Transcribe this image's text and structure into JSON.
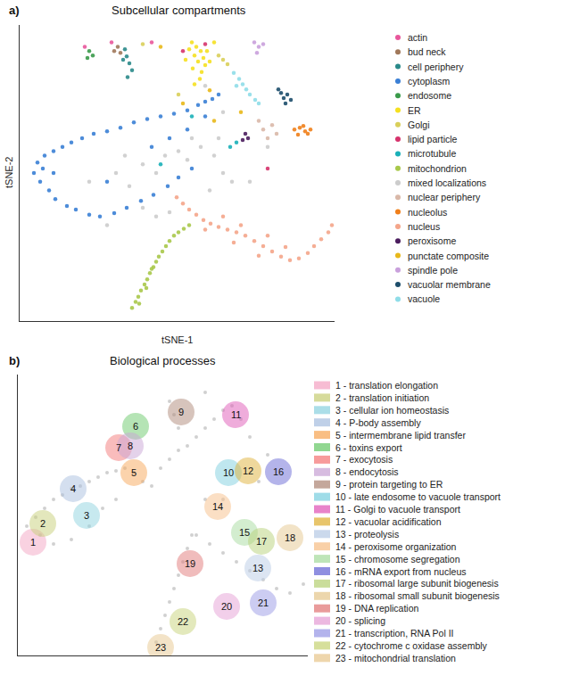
{
  "chart_data": [
    {
      "type": "scatter",
      "panel_label": "a)",
      "title": "Subcellular compartments",
      "x_label": "tSNE-1",
      "y_label": "tSNE-2",
      "xlim": [
        22,
        375
      ],
      "ylim": [
        20,
        360
      ],
      "xticks": [],
      "yticks": [],
      "tick_labels": false,
      "grid": false,
      "legend": "right",
      "marker": "circle",
      "series": [
        {
          "name": "actin",
          "color": "#e8579b",
          "x": [
            95,
            125,
            170
          ],
          "y": [
            335,
            340,
            340
          ]
        },
        {
          "name": "bud neck",
          "color": "#a0785a",
          "x": [
            132,
            135,
            128
          ],
          "y": [
            335,
            328,
            330
          ]
        },
        {
          "name": "cell periphery",
          "color": "#2a8a8a",
          "x": [
            140,
            142,
            145,
            148,
            143,
            138
          ],
          "y": [
            332,
            324,
            316,
            308,
            300,
            320
          ]
        },
        {
          "name": "cytoplasm",
          "color": "#3a7fd5",
          "x": [
            38,
            42,
            45,
            50,
            55,
            60,
            62,
            70,
            75,
            80,
            85,
            92,
            100,
            105,
            112,
            120,
            128,
            135,
            142,
            150,
            158,
            165,
            172,
            180,
            188,
            195,
            200,
            210,
            215,
            222,
            230,
            238,
            245,
            190,
            170,
            60,
            48,
            210,
            230,
            120
          ],
          "y": [
            190,
            202,
            180,
            210,
            170,
            215,
            160,
            220,
            152,
            225,
            148,
            230,
            142,
            235,
            140,
            238,
            144,
            242,
            150,
            248,
            158,
            252,
            165,
            255,
            175,
            258,
            185,
            262,
            195,
            268,
            272,
            275,
            280,
            230,
            220,
            190,
            195,
            240,
            255,
            180
          ]
        },
        {
          "name": "endosome",
          "color": "#3a9a4a",
          "x": [
            100,
            104,
            98
          ],
          "y": [
            330,
            325,
            322
          ]
        },
        {
          "name": "ER",
          "color": "#f5e020",
          "x": [
            215,
            220,
            225,
            218,
            228,
            222,
            230,
            216,
            226,
            232,
            212,
            224,
            218,
            235,
            208,
            240
          ],
          "y": [
            340,
            335,
            330,
            325,
            322,
            318,
            314,
            310,
            306,
            330,
            332,
            298,
            292,
            318,
            320,
            340
          ]
        },
        {
          "name": "Golgi",
          "color": "#d9cf5a",
          "x": [
            245,
            250,
            160,
            200,
            255
          ],
          "y": [
            325,
            320,
            338,
            280,
            315
          ]
        },
        {
          "name": "lipid particle",
          "color": "#d6336c",
          "x": [
            230,
            205,
            300
          ],
          "y": [
            338,
            330,
            195
          ]
        },
        {
          "name": "microtubule",
          "color": "#1ab0b8",
          "x": [
            265,
            180,
            258,
            215
          ],
          "y": [
            225,
            200,
            220,
            255
          ]
        },
        {
          "name": "mitochondrion",
          "color": "#a8c84a",
          "x": [
            148,
            152,
            155,
            158,
            162,
            165,
            168,
            172,
            175,
            178,
            182,
            186,
            190,
            195,
            200,
            206,
            212,
            156,
            164,
            170
          ],
          "y": [
            35,
            42,
            48,
            55,
            62,
            68,
            75,
            82,
            88,
            94,
            100,
            106,
            112,
            118,
            122,
            126,
            130,
            40,
            58,
            80
          ]
        },
        {
          "name": "mixed localizations",
          "color": "#cccccc",
          "x": [
            130,
            145,
            160,
            175,
            185,
            200,
            210,
            225,
            240,
            250,
            260,
            235,
            120,
            100,
            140,
            215,
            245,
            190,
            175,
            230,
            250,
            300,
            280,
            160
          ],
          "y": [
            190,
            175,
            200,
            190,
            210,
            215,
            205,
            220,
            210,
            190,
            180,
            170,
            130,
            180,
            210,
            230,
            230,
            145,
            140,
            290,
            260,
            220,
            180,
            150
          ]
        },
        {
          "name": "nuclear periphery",
          "color": "#d9b8a8",
          "x": [
            295,
            305,
            300,
            310,
            290
          ],
          "y": [
            240,
            245,
            230,
            235,
            250
          ]
        },
        {
          "name": "nucleolus",
          "color": "#f07f1a",
          "x": [
            330,
            336,
            342,
            348,
            334,
            340,
            345
          ],
          "y": [
            240,
            242,
            238,
            240,
            234,
            244,
            235
          ]
        },
        {
          "name": "nucleus",
          "color": "#f4a58a",
          "x": [
            198,
            205,
            212,
            220,
            228,
            236,
            245,
            255,
            265,
            275,
            285,
            295,
            305,
            315,
            325,
            335,
            345,
            352,
            360,
            368,
            372,
            250,
            270,
            300,
            230,
            290,
            320,
            262
          ],
          "y": [
            162,
            155,
            148,
            142,
            136,
            132,
            128,
            125,
            122,
            118,
            112,
            106,
            100,
            94,
            90,
            92,
            98,
            106,
            114,
            122,
            130,
            140,
            130,
            118,
            125,
            95,
            105,
            110
          ]
        },
        {
          "name": "peroxisome",
          "color": "#4b1d5e",
          "x": [
            275,
            278,
            272
          ],
          "y": [
            235,
            230,
            228
          ]
        },
        {
          "name": "punctate composite",
          "color": "#e8b81a",
          "x": [
            235,
            205,
            180,
            240,
            270
          ],
          "y": [
            285,
            270,
            335,
            250,
            260
          ]
        },
        {
          "name": "spindle pole",
          "color": "#c9a0dc",
          "x": [
            285,
            290,
            295,
            288
          ],
          "y": [
            340,
            335,
            338,
            328
          ]
        },
        {
          "name": "vacuolar membrane",
          "color": "#1d4e6b",
          "x": [
            315,
            318,
            322,
            326,
            320,
            312
          ],
          "y": [
            282,
            276,
            280,
            274,
            270,
            286
          ]
        },
        {
          "name": "vacuole",
          "color": "#8fdde8",
          "x": [
            262,
            268,
            272,
            276,
            280,
            286,
            265,
            290
          ],
          "y": [
            305,
            298,
            292,
            286,
            280,
            274,
            290,
            270
          ]
        }
      ]
    },
    {
      "type": "scatter",
      "panel_label": "b)",
      "title": "Biological processes",
      "xlim": [
        20,
        345
      ],
      "ylim": [
        10,
        325
      ],
      "xticks": [],
      "yticks": [],
      "tick_labels": false,
      "grid": false,
      "legend": "right",
      "marker": "square",
      "background": {
        "color": "#c4c4c4",
        "x": [
          30,
          40,
          50,
          60,
          70,
          80,
          90,
          100,
          110,
          120,
          130,
          140,
          150,
          160,
          170,
          180,
          190,
          200,
          210,
          220,
          230,
          240,
          250,
          45,
          60,
          80,
          100,
          115,
          130,
          175,
          180,
          185,
          190,
          195,
          200,
          205,
          210,
          215,
          220,
          235,
          250,
          265,
          280,
          295,
          310,
          325,
          340,
          195,
          200,
          190,
          230,
          260,
          270,
          280,
          300,
          290,
          250,
          230
        ],
        "y": [
          155,
          165,
          175,
          185,
          190,
          197,
          200,
          205,
          210,
          215,
          217,
          220,
          215,
          205,
          200,
          220,
          230,
          240,
          245,
          255,
          265,
          275,
          285,
          145,
          135,
          140,
          155,
          175,
          185,
          25,
          40,
          55,
          70,
          85,
          100,
          115,
          130,
          145,
          145,
          135,
          125,
          115,
          105,
          95,
          85,
          80,
          90,
          280,
          265,
          295,
          305,
          290,
          275,
          255,
          235,
          205,
          185,
          185
        ]
      },
      "series": [
        {
          "name": "1 - translation elongation",
          "label": "1",
          "color": "#f4a6c4",
          "x": [
            37
          ],
          "y": [
            137
          ]
        },
        {
          "name": "2 - translation initiation",
          "label": "2",
          "color": "#c8cf7a",
          "x": [
            48
          ],
          "y": [
            158
          ]
        },
        {
          "name": "3 - cellular ion homeostasis",
          "label": "3",
          "color": "#8fd3e0",
          "x": [
            97
          ],
          "y": [
            167
          ]
        },
        {
          "name": "4 - P-body assembly",
          "label": "4",
          "color": "#a9c0e0",
          "x": [
            82
          ],
          "y": [
            197
          ]
        },
        {
          "name": "5 - intermembrane lipid transfer",
          "label": "5",
          "color": "#f7a85a",
          "x": [
            150
          ],
          "y": [
            215
          ]
        },
        {
          "name": "6 - toxins export",
          "label": "6",
          "color": "#6cc96c",
          "x": [
            152
          ],
          "y": [
            267
          ]
        },
        {
          "name": "7 - exocytosis",
          "label": "7",
          "color": "#f47a7a",
          "x": [
            133
          ],
          "y": [
            243
          ]
        },
        {
          "name": "8 - endocytosis",
          "label": "8",
          "color": "#c9a6d6",
          "x": [
            146
          ],
          "y": [
            245
          ]
        },
        {
          "name": "9 - protein targeting to ER",
          "label": "9",
          "color": "#b08a7a",
          "x": [
            203
          ],
          "y": [
            283
          ]
        },
        {
          "name": "10 - late endosome to vacuole transport",
          "label": "10",
          "color": "#7fd0e0",
          "x": [
            256
          ],
          "y": [
            215
          ]
        },
        {
          "name": "11 - Golgi to vacuole transport",
          "label": "11",
          "color": "#e05ab8",
          "x": [
            264
          ],
          "y": [
            280
          ]
        },
        {
          "name": "12 - vacuolar acidification",
          "label": "12",
          "color": "#e0b23a",
          "x": [
            278
          ],
          "y": [
            217
          ]
        },
        {
          "name": "13 - proteolysis",
          "label": "13",
          "color": "#b9cce6",
          "x": [
            289
          ],
          "y": [
            108
          ]
        },
        {
          "name": "14 - peroxisome organization",
          "label": "14",
          "color": "#f7c08a",
          "x": [
            244
          ],
          "y": [
            177
          ]
        },
        {
          "name": "15 - chromosome segregation",
          "label": "15",
          "color": "#a8dca0",
          "x": [
            274
          ],
          "y": [
            148
          ]
        },
        {
          "name": "16 - mRNA export from nucleus",
          "label": "16",
          "color": "#6a6ad6",
          "x": [
            312
          ],
          "y": [
            216
          ]
        },
        {
          "name": "17 - ribosomal large subunit biogenesis",
          "label": "17",
          "color": "#b8d27a",
          "x": [
            293
          ],
          "y": [
            138
          ]
        },
        {
          "name": "18 - ribosomal small subunit biogenesis",
          "label": "18",
          "color": "#e6c890",
          "x": [
            325
          ],
          "y": [
            142
          ]
        },
        {
          "name": "19 - DNA replication",
          "label": "19",
          "color": "#e27a7a",
          "x": [
            213
          ],
          "y": [
            113
          ]
        },
        {
          "name": "20 - splicing",
          "label": "20",
          "color": "#e6a0d6",
          "x": [
            254
          ],
          "y": [
            65
          ]
        },
        {
          "name": "21 - transcription, RNA Pol II",
          "label": "21",
          "color": "#9a9ae6",
          "x": [
            295
          ],
          "y": [
            69
          ]
        },
        {
          "name": "22 - cytochrome c oxidase assembly",
          "label": "22",
          "color": "#c8d47a",
          "x": [
            205
          ],
          "y": [
            48
          ]
        },
        {
          "name": "23 - mitochondrial translation",
          "label": "23",
          "color": "#e8c890",
          "x": [
            180
          ],
          "y": [
            19
          ]
        }
      ]
    }
  ]
}
